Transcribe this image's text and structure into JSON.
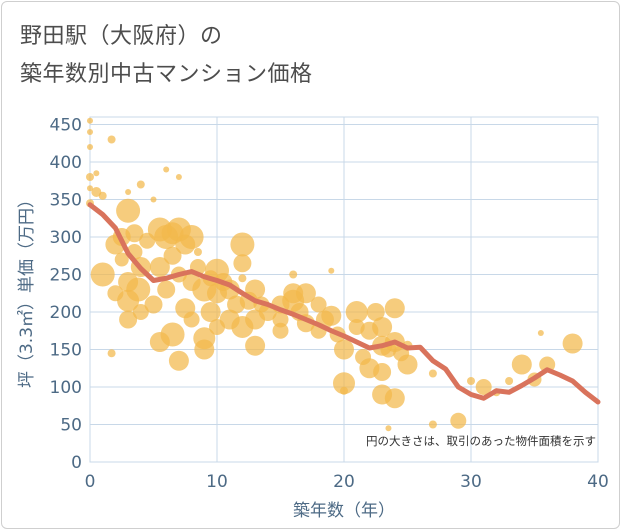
{
  "chart_data": {
    "type": "scatter",
    "title_lines": [
      "野田駅（大阪府）の",
      "築年数別中古マンション価格"
    ],
    "xlabel": "築年数（年）",
    "ylabel": "坪（3.3㎡）単価（万円）",
    "annotation": "円の大きさは、取引のあった物件面積を示す",
    "xlim": [
      0,
      40
    ],
    "ylim": [
      0,
      460
    ],
    "x_ticks": [
      0,
      10,
      20,
      30,
      40
    ],
    "y_ticks": [
      0,
      50,
      100,
      150,
      200,
      250,
      300,
      350,
      400,
      450
    ],
    "grid": true,
    "colors": {
      "bubble": "#f2b84b",
      "line": "#d9735c",
      "grid": "#c8d8e8",
      "axis_text": "#4d6a85"
    },
    "trend_line": {
      "x": [
        0,
        1,
        2,
        3,
        4,
        5,
        6,
        7,
        8,
        9,
        10,
        11,
        12,
        13,
        14,
        15,
        16,
        17,
        18,
        19,
        20,
        21,
        22,
        23,
        24,
        25,
        26,
        27,
        28,
        29,
        30,
        31,
        32,
        33,
        34,
        35,
        36,
        37,
        38,
        39,
        40
      ],
      "y": [
        343,
        330,
        312,
        278,
        258,
        242,
        245,
        250,
        254,
        247,
        242,
        236,
        225,
        215,
        210,
        203,
        197,
        190,
        183,
        175,
        168,
        160,
        152,
        155,
        160,
        152,
        153,
        135,
        124,
        100,
        90,
        85,
        95,
        93,
        102,
        112,
        123,
        116,
        108,
        93,
        80
      ]
    },
    "bubbles": [
      {
        "x": 0,
        "y": 455,
        "s": 3
      },
      {
        "x": 0,
        "y": 440,
        "s": 3
      },
      {
        "x": 0,
        "y": 420,
        "s": 3
      },
      {
        "x": 0,
        "y": 380,
        "s": 4
      },
      {
        "x": 0,
        "y": 365,
        "s": 3
      },
      {
        "x": 0,
        "y": 345,
        "s": 4
      },
      {
        "x": 0.5,
        "y": 385,
        "s": 3
      },
      {
        "x": 0.5,
        "y": 360,
        "s": 5
      },
      {
        "x": 1,
        "y": 250,
        "s": 12
      },
      {
        "x": 1,
        "y": 355,
        "s": 4
      },
      {
        "x": 1.7,
        "y": 430,
        "s": 4
      },
      {
        "x": 1.7,
        "y": 145,
        "s": 4
      },
      {
        "x": 2,
        "y": 290,
        "s": 10
      },
      {
        "x": 2,
        "y": 225,
        "s": 8
      },
      {
        "x": 2.5,
        "y": 300,
        "s": 9
      },
      {
        "x": 2.5,
        "y": 270,
        "s": 7
      },
      {
        "x": 3,
        "y": 335,
        "s": 12
      },
      {
        "x": 3,
        "y": 240,
        "s": 10
      },
      {
        "x": 3,
        "y": 215,
        "s": 11
      },
      {
        "x": 3,
        "y": 190,
        "s": 9
      },
      {
        "x": 3,
        "y": 360,
        "s": 3
      },
      {
        "x": 3.5,
        "y": 305,
        "s": 9
      },
      {
        "x": 3.5,
        "y": 280,
        "s": 8
      },
      {
        "x": 3.8,
        "y": 230,
        "s": 12
      },
      {
        "x": 4,
        "y": 370,
        "s": 4
      },
      {
        "x": 4,
        "y": 260,
        "s": 10
      },
      {
        "x": 4,
        "y": 200,
        "s": 8
      },
      {
        "x": 4.5,
        "y": 295,
        "s": 8
      },
      {
        "x": 5,
        "y": 210,
        "s": 9
      },
      {
        "x": 5,
        "y": 350,
        "s": 3
      },
      {
        "x": 5.5,
        "y": 310,
        "s": 12
      },
      {
        "x": 5.5,
        "y": 260,
        "s": 10
      },
      {
        "x": 5.5,
        "y": 160,
        "s": 10
      },
      {
        "x": 6,
        "y": 390,
        "s": 3
      },
      {
        "x": 6,
        "y": 300,
        "s": 12
      },
      {
        "x": 6,
        "y": 230,
        "s": 9
      },
      {
        "x": 6.5,
        "y": 305,
        "s": 11
      },
      {
        "x": 6.5,
        "y": 275,
        "s": 9
      },
      {
        "x": 6.5,
        "y": 170,
        "s": 12
      },
      {
        "x": 7,
        "y": 310,
        "s": 12
      },
      {
        "x": 7,
        "y": 250,
        "s": 8
      },
      {
        "x": 7,
        "y": 380,
        "s": 3
      },
      {
        "x": 7,
        "y": 135,
        "s": 10
      },
      {
        "x": 7.5,
        "y": 290,
        "s": 10
      },
      {
        "x": 7.5,
        "y": 205,
        "s": 10
      },
      {
        "x": 8,
        "y": 300,
        "s": 12
      },
      {
        "x": 8,
        "y": 240,
        "s": 9
      },
      {
        "x": 8,
        "y": 190,
        "s": 8
      },
      {
        "x": 8.5,
        "y": 260,
        "s": 8
      },
      {
        "x": 8.5,
        "y": 280,
        "s": 4
      },
      {
        "x": 9,
        "y": 230,
        "s": 12
      },
      {
        "x": 9,
        "y": 165,
        "s": 11
      },
      {
        "x": 9,
        "y": 150,
        "s": 10
      },
      {
        "x": 9.5,
        "y": 245,
        "s": 8
      },
      {
        "x": 9.5,
        "y": 200,
        "s": 10
      },
      {
        "x": 10,
        "y": 255,
        "s": 12
      },
      {
        "x": 10,
        "y": 225,
        "s": 10
      },
      {
        "x": 10,
        "y": 180,
        "s": 8
      },
      {
        "x": 10.5,
        "y": 240,
        "s": 9
      },
      {
        "x": 11,
        "y": 230,
        "s": 10
      },
      {
        "x": 11,
        "y": 190,
        "s": 10
      },
      {
        "x": 11.5,
        "y": 210,
        "s": 9
      },
      {
        "x": 12,
        "y": 290,
        "s": 12
      },
      {
        "x": 12,
        "y": 265,
        "s": 9
      },
      {
        "x": 12,
        "y": 180,
        "s": 11
      },
      {
        "x": 12,
        "y": 245,
        "s": 4
      },
      {
        "x": 12.5,
        "y": 215,
        "s": 9
      },
      {
        "x": 13,
        "y": 230,
        "s": 10
      },
      {
        "x": 13,
        "y": 190,
        "s": 10
      },
      {
        "x": 13,
        "y": 155,
        "s": 10
      },
      {
        "x": 13.5,
        "y": 210,
        "s": 8
      },
      {
        "x": 14,
        "y": 200,
        "s": 9
      },
      {
        "x": 15,
        "y": 210,
        "s": 9
      },
      {
        "x": 15,
        "y": 190,
        "s": 8
      },
      {
        "x": 15,
        "y": 175,
        "s": 8
      },
      {
        "x": 16,
        "y": 225,
        "s": 10
      },
      {
        "x": 16,
        "y": 215,
        "s": 11
      },
      {
        "x": 16,
        "y": 250,
        "s": 4
      },
      {
        "x": 16.5,
        "y": 200,
        "s": 9
      },
      {
        "x": 17,
        "y": 225,
        "s": 10
      },
      {
        "x": 17,
        "y": 185,
        "s": 9
      },
      {
        "x": 18,
        "y": 175,
        "s": 8
      },
      {
        "x": 18,
        "y": 210,
        "s": 8
      },
      {
        "x": 18.5,
        "y": 190,
        "s": 9
      },
      {
        "x": 19,
        "y": 195,
        "s": 10
      },
      {
        "x": 19,
        "y": 255,
        "s": 3
      },
      {
        "x": 19.5,
        "y": 170,
        "s": 8
      },
      {
        "x": 20,
        "y": 150,
        "s": 10
      },
      {
        "x": 20,
        "y": 105,
        "s": 11
      },
      {
        "x": 20,
        "y": 95,
        "s": 4
      },
      {
        "x": 21,
        "y": 200,
        "s": 11
      },
      {
        "x": 21,
        "y": 180,
        "s": 8
      },
      {
        "x": 21.5,
        "y": 140,
        "s": 8
      },
      {
        "x": 22,
        "y": 125,
        "s": 10
      },
      {
        "x": 22,
        "y": 175,
        "s": 9
      },
      {
        "x": 22.5,
        "y": 200,
        "s": 9
      },
      {
        "x": 23,
        "y": 180,
        "s": 10
      },
      {
        "x": 23,
        "y": 155,
        "s": 10
      },
      {
        "x": 23,
        "y": 120,
        "s": 9
      },
      {
        "x": 23,
        "y": 90,
        "s": 10
      },
      {
        "x": 23.5,
        "y": 150,
        "s": 8
      },
      {
        "x": 23.5,
        "y": 45,
        "s": 3
      },
      {
        "x": 24,
        "y": 205,
        "s": 10
      },
      {
        "x": 24,
        "y": 160,
        "s": 10
      },
      {
        "x": 24,
        "y": 85,
        "s": 10
      },
      {
        "x": 24.5,
        "y": 145,
        "s": 8
      },
      {
        "x": 25,
        "y": 130,
        "s": 10
      },
      {
        "x": 25,
        "y": 155,
        "s": 5
      },
      {
        "x": 27,
        "y": 118,
        "s": 4
      },
      {
        "x": 27,
        "y": 50,
        "s": 4
      },
      {
        "x": 29,
        "y": 55,
        "s": 8
      },
      {
        "x": 30,
        "y": 108,
        "s": 4
      },
      {
        "x": 31,
        "y": 100,
        "s": 8
      },
      {
        "x": 32,
        "y": 93,
        "s": 4
      },
      {
        "x": 33,
        "y": 108,
        "s": 4
      },
      {
        "x": 34,
        "y": 130,
        "s": 10
      },
      {
        "x": 35,
        "y": 110,
        "s": 7
      },
      {
        "x": 35.5,
        "y": 172,
        "s": 3
      },
      {
        "x": 36,
        "y": 130,
        "s": 8
      },
      {
        "x": 38,
        "y": 158,
        "s": 10
      }
    ]
  }
}
